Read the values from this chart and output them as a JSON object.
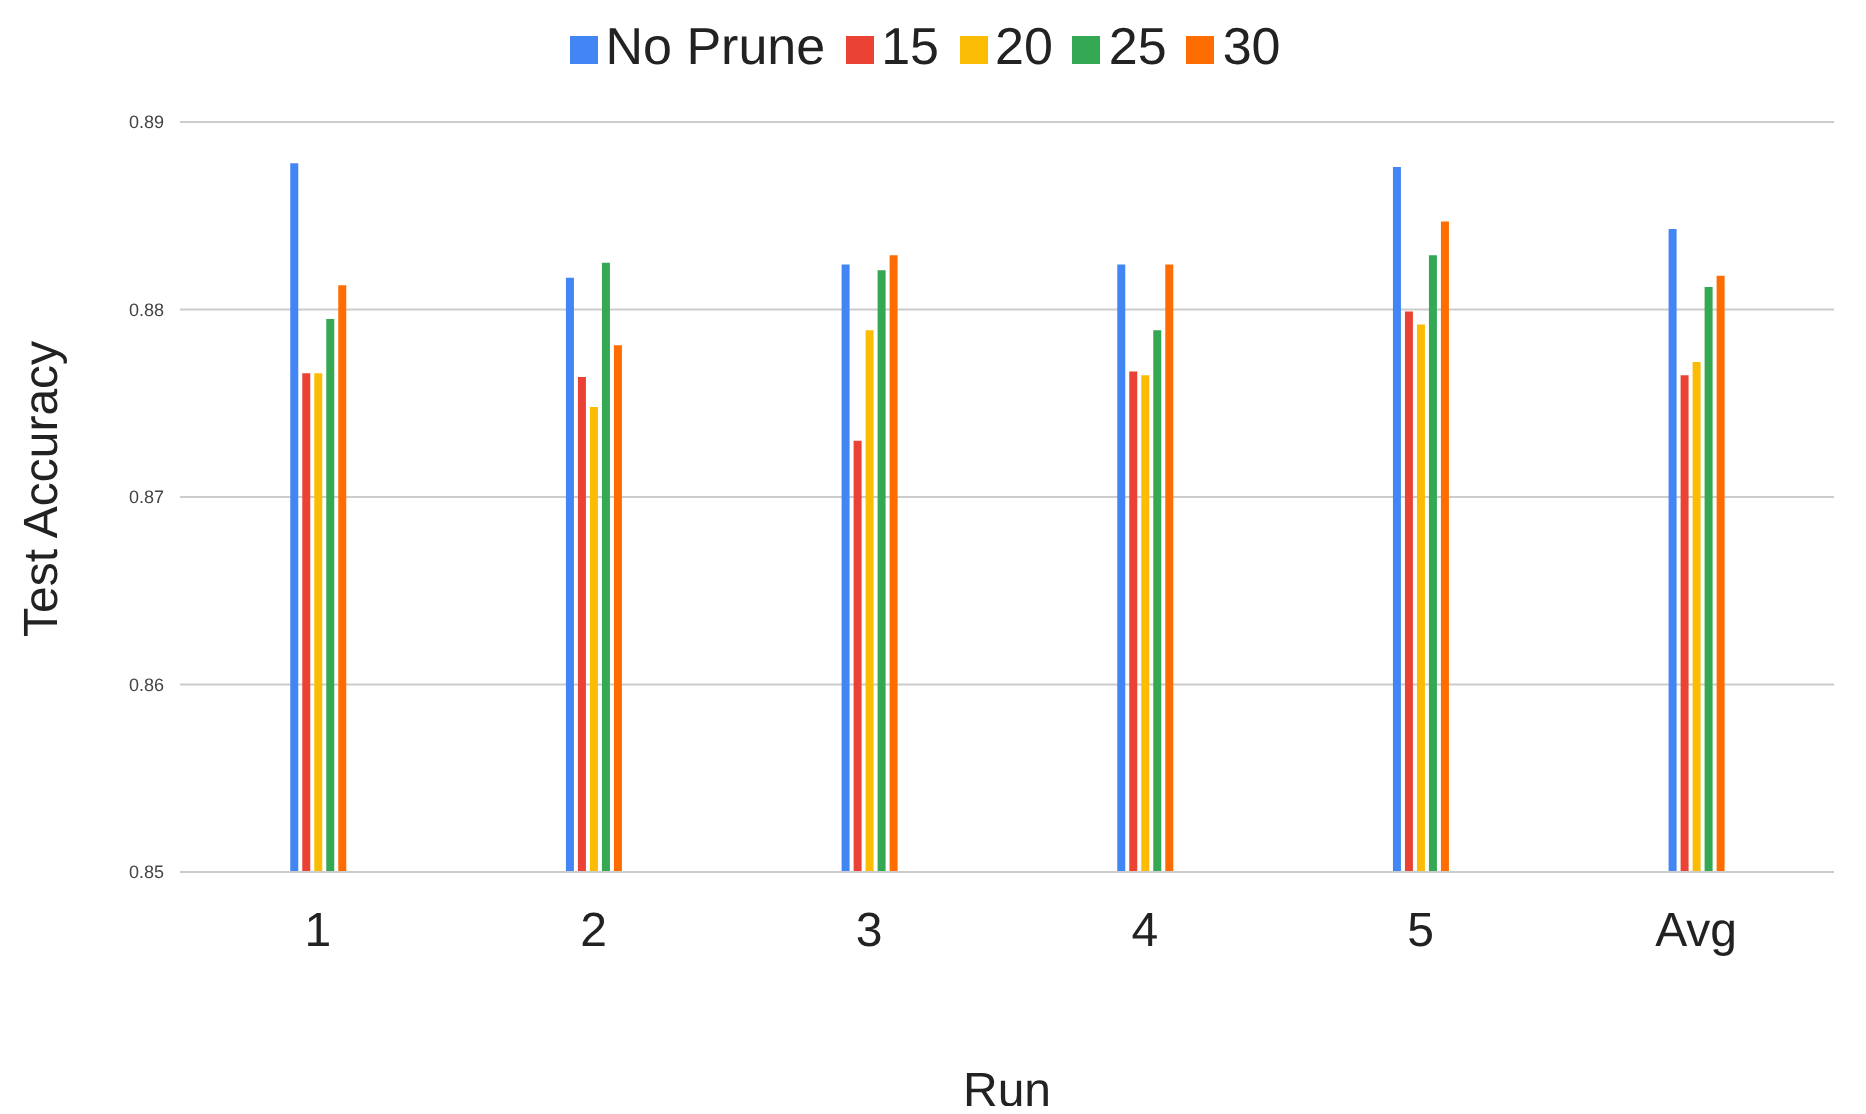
{
  "chart_data": {
    "type": "bar",
    "xlabel": "Run",
    "ylabel": "Test Accuracy",
    "categories": [
      "1",
      "2",
      "3",
      "4",
      "5",
      "Avg"
    ],
    "series": [
      {
        "name": "No Prune",
        "color": "#4285f4",
        "values": [
          0.8878,
          0.8817,
          0.8824,
          0.8824,
          0.8876,
          0.8843
        ]
      },
      {
        "name": "15",
        "color": "#ea4335",
        "values": [
          0.8766,
          0.8764,
          0.873,
          0.8767,
          0.8799,
          0.8765
        ]
      },
      {
        "name": "20",
        "color": "#fbbc04",
        "values": [
          0.8766,
          0.8748,
          0.8789,
          0.8765,
          0.8792,
          0.8772
        ]
      },
      {
        "name": "25",
        "color": "#34a853",
        "values": [
          0.8795,
          0.8825,
          0.8821,
          0.8789,
          0.8829,
          0.8812
        ]
      },
      {
        "name": "30",
        "color": "#ff6d01",
        "values": [
          0.8813,
          0.8781,
          0.8829,
          0.8824,
          0.8847,
          0.8818
        ]
      }
    ],
    "ylim": [
      0.85,
      0.89
    ],
    "yticks": [
      0.85,
      0.86,
      0.87,
      0.88,
      0.89
    ],
    "grid": "y",
    "legend": "top"
  }
}
